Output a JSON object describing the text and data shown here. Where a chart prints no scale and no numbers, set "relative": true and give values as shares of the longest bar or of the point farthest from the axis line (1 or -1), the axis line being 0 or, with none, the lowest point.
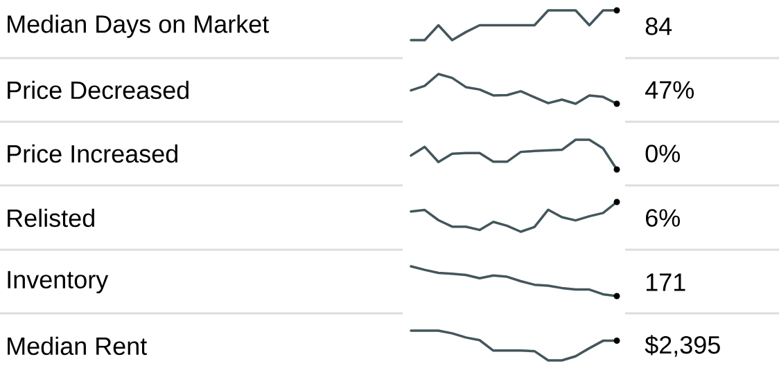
{
  "chart_data": [
    {
      "type": "line",
      "ylabel": "Median Days on Market",
      "relative": true,
      "color": "#44565c",
      "categories": [
        null,
        null,
        null,
        null,
        null,
        null,
        null,
        null,
        null,
        null,
        null,
        null,
        null,
        null,
        null,
        null
      ],
      "values": [
        0,
        0,
        0.5,
        0,
        0.27,
        0.5,
        0.5,
        0.5,
        0.5,
        0.5,
        1,
        1,
        1,
        0.5,
        1,
        1
      ],
      "annotations": [
        "84"
      ]
    },
    {
      "type": "line",
      "ylabel": "Price Decreased",
      "relative": true,
      "color": "#44565c",
      "categories": [
        null,
        null,
        null,
        null,
        null,
        null,
        null,
        null,
        null,
        null,
        null,
        null,
        null,
        null,
        null,
        null
      ],
      "values": [
        0.45,
        0.6,
        1,
        0.87,
        0.56,
        0.48,
        0.28,
        0.29,
        0.42,
        0.22,
        0.02,
        0.14,
        0,
        0.28,
        0.23,
        0
      ],
      "annotations": [
        "47%"
      ]
    },
    {
      "type": "line",
      "ylabel": "Price Increased",
      "relative": true,
      "color": "#44565c",
      "categories": [
        null,
        null,
        null,
        null,
        null,
        null,
        null,
        null,
        null,
        null,
        null,
        null,
        null,
        null,
        null,
        null
      ],
      "values": [
        0.47,
        0.76,
        0.25,
        0.53,
        0.55,
        0.55,
        0.26,
        0.26,
        0.59,
        0.62,
        0.64,
        0.66,
        1,
        1,
        0.71,
        0
      ],
      "annotations": [
        "0%"
      ]
    },
    {
      "type": "line",
      "ylabel": "Relisted",
      "relative": true,
      "color": "#44565c",
      "categories": [
        null,
        null,
        null,
        null,
        null,
        null,
        null,
        null,
        null,
        null,
        null,
        null,
        null,
        null,
        null,
        null
      ],
      "values": [
        0.68,
        0.73,
        0.39,
        0.17,
        0.17,
        0.06,
        0.33,
        0.2,
        0,
        0.16,
        0.74,
        0.49,
        0.38,
        0.52,
        0.63,
        1
      ],
      "annotations": [
        "6%"
      ]
    },
    {
      "type": "line",
      "ylabel": "Inventory",
      "relative": true,
      "color": "#44565c",
      "categories": [
        null,
        null,
        null,
        null,
        null,
        null,
        null,
        null,
        null,
        null,
        null,
        null,
        null,
        null,
        null,
        null
      ],
      "values": [
        1,
        0.88,
        0.78,
        0.75,
        0.71,
        0.6,
        0.69,
        0.65,
        0.5,
        0.38,
        0.35,
        0.27,
        0.22,
        0.22,
        0.06,
        0
      ],
      "annotations": [
        "171"
      ]
    },
    {
      "type": "line",
      "ylabel": "Median Rent",
      "relative": true,
      "color": "#44565c",
      "categories": [
        null,
        null,
        null,
        null,
        null,
        null,
        null,
        null,
        null,
        null,
        null,
        null,
        null,
        null,
        null,
        null
      ],
      "values": [
        1,
        1,
        1,
        0.91,
        0.77,
        0.68,
        0.33,
        0.33,
        0.33,
        0.31,
        0,
        0,
        0.14,
        0.41,
        0.66,
        0.66
      ],
      "annotations": [
        "$2,395"
      ]
    }
  ]
}
